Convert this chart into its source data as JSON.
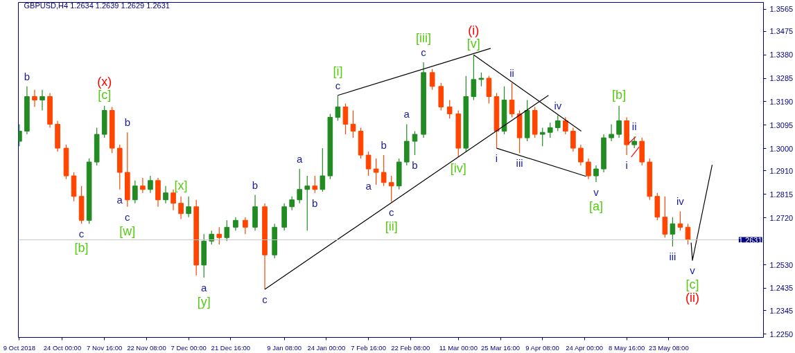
{
  "chart_data": {
    "type": "candlestick",
    "title": "GBPUSD,H4  1.2634 1.2639 1.2629 1.2631",
    "x": [
      "2018-10-09T00:00",
      "2018-10-11T16:00",
      "2018-10-14T08:00",
      "2018-10-17T00:00",
      "2018-10-19T16:00",
      "2018-10-22T08:00",
      "2018-10-25T08:00",
      "2018-10-28T00:00",
      "2018-10-30T16:00",
      "2018-11-02T08:00",
      "2018-11-05T00:00",
      "2018-11-07T16:00",
      "2018-11-10T08:00",
      "2018-11-13T00:00",
      "2018-11-15T16:00",
      "2018-11-18T08:00",
      "2018-11-21T00:00",
      "2018-11-23T16:00",
      "2018-11-26T08:00",
      "2018-11-29T00:00",
      "2018-12-01T16:00",
      "2018-12-04T08:00",
      "2018-12-07T00:00",
      "2018-12-09T16:00",
      "2018-12-12T08:00",
      "2018-12-15T00:00",
      "2018-12-17T16:00",
      "2018-12-20T08:00",
      "2018-12-23T09:00",
      "2018-12-26T18:00",
      "2018-12-30T04:00",
      "2019-01-02T13:00",
      "2019-01-05T23:00",
      "2019-01-09T08:00",
      "2019-01-12T00:00",
      "2019-01-14T16:00",
      "2019-01-17T08:00",
      "2019-01-20T00:00",
      "2019-01-22T16:00",
      "2019-01-25T08:00",
      "2019-01-28T00:00",
      "2019-01-30T16:00",
      "2019-02-02T08:00",
      "2019-02-05T00:00",
      "2019-02-07T16:00",
      "2019-02-10T08:00",
      "2019-02-13T00:00",
      "2019-02-15T16:00",
      "2019-02-18T08:00",
      "2019-02-21T00:00",
      "2019-02-23T20:00",
      "2019-02-26T21:00",
      "2019-03-01T22:00",
      "2019-03-04T23:00",
      "2019-03-07T23:00",
      "2019-03-11T00:00",
      "2019-03-13T16:00",
      "2019-03-16T08:00",
      "2019-03-19T00:00",
      "2019-03-21T16:00",
      "2019-03-24T08:00",
      "2019-03-27T00:00",
      "2019-03-29T16:00",
      "2019-04-01T08:00",
      "2019-04-04T00:00",
      "2019-04-06T16:00",
      "2019-04-09T08:00",
      "2019-04-12T00:00",
      "2019-04-14T16:00",
      "2019-04-17T08:00",
      "2019-04-20T00:00",
      "2019-04-22T16:00",
      "2019-04-25T08:00",
      "2019-04-28T00:00",
      "2019-04-30T16:00",
      "2019-05-03T08:00",
      "2019-05-06T00:00",
      "2019-05-08T16:00",
      "2019-05-11T08:00",
      "2019-05-14T00:00",
      "2019-05-16T16:00",
      "2019-05-19T08:00",
      "2019-05-22T00:00",
      "2019-05-24T16:00",
      "2019-05-27T08:00",
      "2019-05-30T00:00"
    ],
    "ohlc": [
      [
        1.303,
        1.3099,
        1.301,
        1.3071
      ],
      [
        1.3071,
        1.3252,
        1.3058,
        1.3211
      ],
      [
        1.3211,
        1.3238,
        1.3169,
        1.3197
      ],
      [
        1.3197,
        1.3238,
        1.3155,
        1.3211
      ],
      [
        1.3211,
        1.3225,
        1.3085,
        1.3099
      ],
      [
        1.3099,
        1.3113,
        1.2988,
        1.3002
      ],
      [
        1.3002,
        1.3016,
        1.2877,
        1.289
      ],
      [
        1.289,
        1.2904,
        1.2787,
        1.2807
      ],
      [
        1.2807,
        1.2849,
        1.2696,
        1.271
      ],
      [
        1.271,
        1.296,
        1.2696,
        1.2946
      ],
      [
        1.2946,
        1.3085,
        1.2932,
        1.3058
      ],
      [
        1.3058,
        1.3174,
        1.3044,
        1.3155
      ],
      [
        1.3155,
        1.3169,
        1.2982,
        1.3002
      ],
      [
        1.3002,
        1.3016,
        1.2835,
        1.2904
      ],
      [
        1.2904,
        1.3066,
        1.2765,
        1.2793
      ],
      [
        1.2793,
        1.2871,
        1.2779,
        1.2849
      ],
      [
        1.2849,
        1.2882,
        1.2821,
        1.2835
      ],
      [
        1.2835,
        1.289,
        1.2821,
        1.2871
      ],
      [
        1.2871,
        1.2882,
        1.2765,
        1.2793
      ],
      [
        1.2793,
        1.2849,
        1.2779,
        1.2821
      ],
      [
        1.2821,
        1.2835,
        1.2751,
        1.2779
      ],
      [
        1.2779,
        1.2807,
        1.2715,
        1.2737
      ],
      [
        1.2737,
        1.2807,
        1.2723,
        1.2765
      ],
      [
        1.2765,
        1.2793,
        1.2487,
        1.2529
      ],
      [
        1.2529,
        1.2654,
        1.2478,
        1.2626
      ],
      [
        1.2626,
        1.2668,
        1.2612,
        1.2654
      ],
      [
        1.2654,
        1.2682,
        1.2612,
        1.264
      ],
      [
        1.264,
        1.271,
        1.2626,
        1.2682
      ],
      [
        1.2682,
        1.2723,
        1.2668,
        1.271
      ],
      [
        1.271,
        1.2723,
        1.2654,
        1.2682
      ],
      [
        1.2682,
        1.2813,
        1.2668,
        1.2765
      ],
      [
        1.2765,
        1.2779,
        1.2431,
        1.257
      ],
      [
        1.257,
        1.2696,
        1.2556,
        1.2682
      ],
      [
        1.2682,
        1.2779,
        1.2668,
        1.2765
      ],
      [
        1.2765,
        1.2807,
        1.2751,
        1.2793
      ],
      [
        1.2793,
        1.2918,
        1.2779,
        1.2835
      ],
      [
        1.2835,
        1.289,
        1.2668,
        1.2849
      ],
      [
        1.2849,
        1.289,
        1.2821,
        1.2835
      ],
      [
        1.2835,
        1.3002,
        1.2826,
        1.289
      ],
      [
        1.289,
        1.3141,
        1.2877,
        1.3127
      ],
      [
        1.3127,
        1.3216,
        1.3113,
        1.3169
      ],
      [
        1.3169,
        1.3183,
        1.3058,
        1.3099
      ],
      [
        1.3099,
        1.3155,
        1.3044,
        1.3071
      ],
      [
        1.3071,
        1.3085,
        1.296,
        1.2974
      ],
      [
        1.2974,
        1.2988,
        1.289,
        1.2918
      ],
      [
        1.2918,
        1.296,
        1.2854,
        1.2904
      ],
      [
        1.2904,
        1.2974,
        1.2849,
        1.2863
      ],
      [
        1.2863,
        1.289,
        1.2785,
        1.2849
      ],
      [
        1.2849,
        1.296,
        1.2835,
        1.2946
      ],
      [
        1.2946,
        1.3099,
        1.2932,
        1.303
      ],
      [
        1.303,
        1.3071,
        1.2974,
        1.3058
      ],
      [
        1.3058,
        1.335,
        1.3044,
        1.3308
      ],
      [
        1.3308,
        1.3322,
        1.3238,
        1.3252
      ],
      [
        1.3252,
        1.3266,
        1.3155,
        1.3169
      ],
      [
        1.3169,
        1.3197,
        1.3122,
        1.3141
      ],
      [
        1.3141,
        1.3155,
        1.2966,
        1.3002
      ],
      [
        1.3002,
        1.3294,
        1.2988,
        1.3211
      ],
      [
        1.3211,
        1.338,
        1.3197,
        1.328
      ],
      [
        1.328,
        1.3308,
        1.3252,
        1.3285
      ],
      [
        1.3285,
        1.3294,
        1.3183,
        1.3211
      ],
      [
        1.3211,
        1.3225,
        1.3002,
        1.3071
      ],
      [
        1.3071,
        1.3252,
        1.3058,
        1.3197
      ],
      [
        1.3197,
        1.3266,
        1.3127,
        1.3141
      ],
      [
        1.3141,
        1.3155,
        1.2982,
        1.3044
      ],
      [
        1.3044,
        1.3197,
        1.303,
        1.3155
      ],
      [
        1.3155,
        1.3169,
        1.3044,
        1.3058
      ],
      [
        1.3058,
        1.3085,
        1.301,
        1.3066
      ],
      [
        1.3066,
        1.3105,
        1.3044,
        1.3085
      ],
      [
        1.3085,
        1.3135,
        1.3071,
        1.3113
      ],
      [
        1.3113,
        1.3127,
        1.3058,
        1.3071
      ],
      [
        1.3071,
        1.3085,
        1.2988,
        1.3002
      ],
      [
        1.3002,
        1.3016,
        1.2932,
        1.2946
      ],
      [
        1.2946,
        1.296,
        1.2877,
        1.289
      ],
      [
        1.289,
        1.2932,
        1.2865,
        1.2918
      ],
      [
        1.2918,
        1.3058,
        1.2904,
        1.3044
      ],
      [
        1.3044,
        1.3099,
        1.303,
        1.3058
      ],
      [
        1.3058,
        1.3174,
        1.3044,
        1.3113
      ],
      [
        1.3113,
        1.3127,
        1.2974,
        1.3016
      ],
      [
        1.3016,
        1.3049,
        1.3002,
        1.303
      ],
      [
        1.303,
        1.3044,
        1.2932,
        1.2946
      ],
      [
        1.2946,
        1.296,
        1.2793,
        1.2807
      ],
      [
        1.2807,
        1.2821,
        1.271,
        1.2723
      ],
      [
        1.2723,
        1.2807,
        1.264,
        1.2654
      ],
      [
        1.2654,
        1.2723,
        1.2604,
        1.2696
      ],
      [
        1.2696,
        1.2746,
        1.2668,
        1.2682
      ],
      [
        1.2682,
        1.2696,
        1.2612,
        1.2631
      ]
    ],
    "colors": [
      "#228b22",
      "#228b22",
      "#ff4500",
      "#228b22",
      "#ff4500",
      "#ff4500",
      "#ff4500",
      "#ff4500",
      "#ff4500",
      "#228b22",
      "#228b22",
      "#228b22",
      "#ff4500",
      "#ff4500",
      "#ff4500",
      "#228b22",
      "#ff4500",
      "#228b22",
      "#ff4500",
      "#228b22",
      "#ff4500",
      "#ff4500",
      "#228b22",
      "#ff4500",
      "#228b22",
      "#228b22",
      "#ff4500",
      "#228b22",
      "#228b22",
      "#ff4500",
      "#228b22",
      "#ff4500",
      "#228b22",
      "#228b22",
      "#228b22",
      "#228b22",
      "#228b22",
      "#ff4500",
      "#228b22",
      "#228b22",
      "#228b22",
      "#ff4500",
      "#ff4500",
      "#ff4500",
      "#ff4500",
      "#ff4500",
      "#ff4500",
      "#ff4500",
      "#228b22",
      "#228b22",
      "#228b22",
      "#228b22",
      "#ff4500",
      "#ff4500",
      "#ff4500",
      "#ff4500",
      "#228b22",
      "#228b22",
      "#228b22",
      "#ff4500",
      "#ff4500",
      "#228b22",
      "#ff4500",
      "#ff4500",
      "#228b22",
      "#ff4500",
      "#228b22",
      "#228b22",
      "#228b22",
      "#ff4500",
      "#ff4500",
      "#ff4500",
      "#ff4500",
      "#228b22",
      "#228b22",
      "#228b22",
      "#228b22",
      "#ff4500",
      "#228b22",
      "#ff4500",
      "#ff4500",
      "#ff4500",
      "#ff4500",
      "#228b22",
      "#ff4500",
      "#ff4500"
    ],
    "series": [
      {
        "type": "line",
        "color": "#000000",
        "x": [
          "2019-01-28T00:00",
          "2019-03-22T06:00"
        ],
        "values": [
          1.3216,
          1.3406
        ]
      },
      {
        "type": "line",
        "color": "#000000",
        "x": [
          "2019-01-02T13:00",
          "2019-04-11T10:00"
        ],
        "values": [
          1.2431,
          1.3216
        ]
      },
      {
        "type": "line",
        "color": "#000000",
        "x": [
          "2019-03-16T08:00",
          "2019-04-22T20:00"
        ],
        "values": [
          1.338,
          1.3071
        ]
      },
      {
        "type": "line",
        "color": "#000000",
        "x": [
          "2019-03-24T08:00",
          "2019-04-24T12:00"
        ],
        "values": [
          1.3002,
          1.2888
        ]
      },
      {
        "type": "line",
        "color": "#ff0000",
        "x": [
          "2019-05-09T08:00",
          "2019-05-11T21:00"
        ],
        "values": [
          1.3021,
          1.3049
        ]
      },
      {
        "type": "line",
        "color": "#ff0000",
        "x": [
          "2019-05-10T06:00",
          "2019-05-13T00:00"
        ],
        "values": [
          1.2966,
          1.3007
        ]
      },
      {
        "type": "line",
        "color": "#000000",
        "x": [
          "2019-05-31T03:00",
          "2019-05-31T14:00",
          "2019-06-07T11:00"
        ],
        "values": [
          1.262,
          1.2548,
          1.2935
        ]
      }
    ],
    "ref_lines": [
      {
        "axis": "y",
        "value": 1.2631,
        "label": "1.2631",
        "color": "#c8c8c8"
      }
    ],
    "xlim": [
      "2018-10-08T16:00",
      "2019-06-25T08:00"
    ],
    "xticks": [
      {
        "value": "2018-10-09T00:00",
        "label": "9 Oct 2018"
      },
      {
        "value": "2018-10-24T00:00",
        "label": "24 Oct 00:00"
      },
      {
        "value": "2018-11-07T16:00",
        "label": "7 Nov 16:00"
      },
      {
        "value": "2018-11-22T08:00",
        "label": "22 Nov 08:00"
      },
      {
        "value": "2018-12-07T00:00",
        "label": "7 Dec 00:00"
      },
      {
        "value": "2018-12-21T16:00",
        "label": "21 Dec 16:00"
      },
      {
        "value": "2019-01-09T08:00",
        "label": "9 Jan 08:00"
      },
      {
        "value": "2019-01-24T00:00",
        "label": "24 Jan 00:00"
      },
      {
        "value": "2019-02-07T16:00",
        "label": "7 Feb 16:00"
      },
      {
        "value": "2019-02-22T08:00",
        "label": "22 Feb 08:00"
      },
      {
        "value": "2019-03-11T00:00",
        "label": "11 Mar 00:00"
      },
      {
        "value": "2019-03-25T16:00",
        "label": "25 Mar 16:00"
      },
      {
        "value": "2019-04-09T08:00",
        "label": "9 Apr 08:00"
      },
      {
        "value": "2019-04-24T00:00",
        "label": "24 Apr 00:00"
      },
      {
        "value": "2019-05-08T16:00",
        "label": "8 May 16:00"
      },
      {
        "value": "2019-05-23T08:00",
        "label": "23 May 08:00"
      }
    ],
    "ylim": [
      1.2236,
      1.3592
    ],
    "yticks": [
      {
        "value": 1.225,
        "label": "1.2250"
      },
      1.2345,
      1.2435,
      {
        "value": 1.253,
        "label": "1.2530"
      },
      {
        "value": 1.272,
        "label": "1.2720"
      },
      1.2815,
      {
        "value": 1.291,
        "label": "1.2910"
      },
      {
        "value": 1.3,
        "label": "1.3000"
      },
      1.3095,
      {
        "value": 1.319,
        "label": "1.3190"
      },
      1.3285,
      {
        "value": 1.338,
        "label": "1.3380"
      },
      1.3475,
      1.3565
    ],
    "annotations": [
      {
        "text": "b",
        "x": "2018-10-11T16:00",
        "y": 1.3252
      },
      {
        "text": "[c]",
        "x": "2018-11-07T16:00",
        "y": 1.3174
      },
      {
        "text": "(x)",
        "x": "2018-11-07T16:00",
        "y": 1.3174
      },
      {
        "text": "c",
        "x": "2018-10-30T16:00",
        "y": 1.2696
      },
      {
        "text": "[b]",
        "x": "2018-10-30T16:00",
        "y": 1.2696
      },
      {
        "text": "b",
        "x": "2018-11-15T16:00",
        "y": 1.3066
      },
      {
        "text": "a",
        "x": "2018-11-13T00:00",
        "y": 1.2835
      },
      {
        "text": "c",
        "x": "2018-11-15T16:00",
        "y": 1.2765
      },
      {
        "text": "[w]",
        "x": "2018-11-15T16:00",
        "y": 1.2765
      },
      {
        "text": "[x]",
        "x": "2018-12-04T08:00",
        "y": 1.2807
      },
      {
        "text": "a",
        "x": "2018-12-12T08:00",
        "y": 1.2478
      },
      {
        "text": "[y]",
        "x": "2018-12-12T08:00",
        "y": 1.2478
      },
      {
        "text": "b",
        "x": "2018-12-30T04:00",
        "y": 1.2813
      },
      {
        "text": "c",
        "x": "2019-01-02T13:00",
        "y": 1.2431
      },
      {
        "text": "a",
        "x": "2019-01-14T16:00",
        "y": 1.2918
      },
      {
        "text": "b",
        "x": "2019-01-20T00:00",
        "y": 1.2821
      },
      {
        "text": "c",
        "x": "2019-01-28T00:00",
        "y": 1.3216
      },
      {
        "text": "[i]",
        "x": "2019-01-28T00:00",
        "y": 1.3216
      },
      {
        "text": "a",
        "x": "2019-02-07T16:00",
        "y": 1.289
      },
      {
        "text": "b",
        "x": "2019-02-13T00:00",
        "y": 1.2974
      },
      {
        "text": "c",
        "x": "2019-02-15T16:00",
        "y": 1.2785
      },
      {
        "text": "[ii]",
        "x": "2019-02-15T16:00",
        "y": 1.2785
      },
      {
        "text": "a",
        "x": "2019-02-21T00:00",
        "y": 1.3099
      },
      {
        "text": "b",
        "x": "2019-02-23T20:00",
        "y": 1.2974
      },
      {
        "text": "c",
        "x": "2019-02-26T21:00",
        "y": 1.335
      },
      {
        "text": "[iii]",
        "x": "2019-02-26T21:00",
        "y": 1.335
      },
      {
        "text": "[v]",
        "x": "2019-03-16T08:00",
        "y": 1.338
      },
      {
        "text": "(i)",
        "x": "2019-03-16T08:00",
        "y": 1.338
      },
      {
        "text": "[iv]",
        "x": "2019-03-11T00:00",
        "y": 1.2966
      },
      {
        "text": "i",
        "x": "2019-03-24T08:00",
        "y": 1.3002
      },
      {
        "text": "ii",
        "x": "2019-03-29T16:00",
        "y": 1.3266
      },
      {
        "text": "iii",
        "x": "2019-04-01T08:00",
        "y": 1.2982
      },
      {
        "text": "iv",
        "x": "2019-04-14T16:00",
        "y": 1.3135
      },
      {
        "text": "v",
        "x": "2019-04-28T00:00",
        "y": 1.2865
      },
      {
        "text": "[a]",
        "x": "2019-04-28T00:00",
        "y": 1.2865
      },
      {
        "text": "[b]",
        "x": "2019-05-06T00:00",
        "y": 1.3174
      },
      {
        "text": "ii",
        "x": "2019-05-11T08:00",
        "y": 1.3049
      },
      {
        "text": "i",
        "x": "2019-05-08T16:00",
        "y": 1.2974
      },
      {
        "text": "iii",
        "x": "2019-05-24T16:00",
        "y": 1.2604
      },
      {
        "text": "iv",
        "x": "2019-05-27T08:00",
        "y": 1.2746
      },
      {
        "text": "v",
        "x": "2019-05-31T14:00",
        "y": 1.2548
      },
      {
        "text": "[c]",
        "x": "2019-05-31T14:00",
        "y": 1.2548
      },
      {
        "text": "(ii)",
        "x": "2019-05-31T14:00",
        "y": 1.2548
      }
    ]
  }
}
